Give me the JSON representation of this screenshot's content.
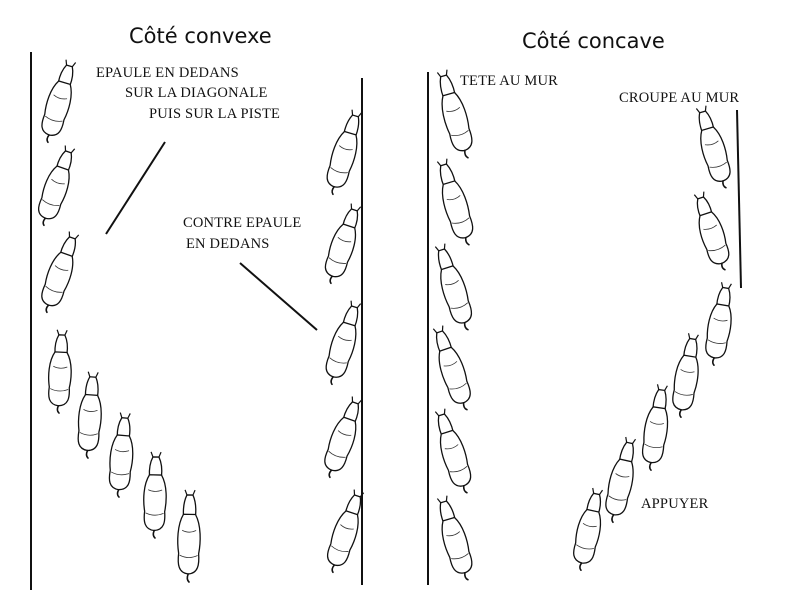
{
  "left_panel": {
    "title": "Côté convexe",
    "labels": {
      "epaule_1": "EPAULE EN DEDANS",
      "epaule_2": "SUR LA DIAGONALE",
      "epaule_3": "PUIS SUR LA PISTE",
      "contre_1": "CONTRE EPAULE",
      "contre_2": "EN DEDANS"
    }
  },
  "right_panel": {
    "title": "Côté concave",
    "labels": {
      "tete": "TETE AU MUR",
      "croupe": "CROUPE AU MUR",
      "appuyer": "APPUYER"
    }
  },
  "horse_icon": "horse-top-view-icon",
  "line_color": "#111111"
}
